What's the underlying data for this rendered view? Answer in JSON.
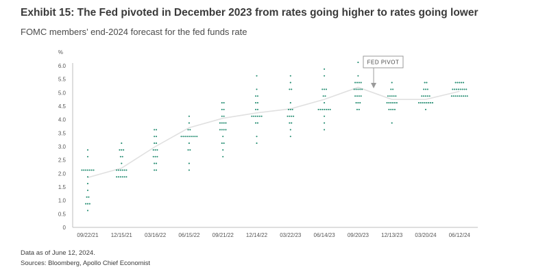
{
  "header": {
    "title": "Exhibit 15: The Fed pivoted in December 2023 from rates going higher to rates going lower",
    "subtitle": "FOMC members’ end-2024 forecast for the fed funds rate"
  },
  "footer": {
    "note": "Data as of June 12, 2024.",
    "sources": "Sources: Bloomberg, Apollo Chief Economist"
  },
  "chart_data": {
    "type": "scatter",
    "title": "",
    "xlabel": "",
    "ylabel": "%",
    "ylim": [
      0,
      6.0
    ],
    "yticks": [
      "0",
      "0.5",
      "1.0",
      "1.5",
      "2.0",
      "2.5",
      "3.0",
      "3.5",
      "4.0",
      "4.5",
      "5.0",
      "5.5",
      "6.0"
    ],
    "categories": [
      "09/22/21",
      "12/15/21",
      "03/16/22",
      "06/15/22",
      "09/21/22",
      "12/14/22",
      "03/22/23",
      "06/14/23",
      "09/20/23",
      "12/13/23",
      "03/20/24",
      "06/12/24"
    ],
    "grid": false,
    "dot_color": "#1f8a6e",
    "line_color": "#e0e0e0",
    "dots": [
      {
        "date": "09/22/21",
        "levels": [
          [
            2.875,
            1
          ],
          [
            2.625,
            1
          ],
          [
            2.125,
            7
          ],
          [
            1.875,
            1
          ],
          [
            1.625,
            1
          ],
          [
            1.375,
            1
          ],
          [
            1.125,
            2
          ],
          [
            0.875,
            3
          ],
          [
            0.625,
            1
          ]
        ]
      },
      {
        "date": "12/15/21",
        "levels": [
          [
            3.125,
            1
          ],
          [
            2.875,
            3
          ],
          [
            2.625,
            2
          ],
          [
            2.375,
            1
          ],
          [
            2.125,
            6
          ],
          [
            1.875,
            6
          ]
        ]
      },
      {
        "date": "03/16/22",
        "levels": [
          [
            3.625,
            2
          ],
          [
            3.375,
            2
          ],
          [
            3.125,
            2
          ],
          [
            2.875,
            3
          ],
          [
            2.625,
            3
          ],
          [
            2.375,
            2
          ],
          [
            2.125,
            2
          ]
        ]
      },
      {
        "date": "06/15/22",
        "levels": [
          [
            4.125,
            1
          ],
          [
            3.875,
            1
          ],
          [
            3.625,
            2
          ],
          [
            3.375,
            9
          ],
          [
            3.125,
            1
          ],
          [
            2.875,
            2
          ],
          [
            2.375,
            1
          ],
          [
            2.125,
            1
          ]
        ]
      },
      {
        "date": "09/21/22",
        "levels": [
          [
            4.625,
            2
          ],
          [
            4.375,
            2
          ],
          [
            4.125,
            2
          ],
          [
            3.875,
            4
          ],
          [
            3.625,
            4
          ],
          [
            3.375,
            1
          ],
          [
            3.125,
            2
          ],
          [
            2.875,
            1
          ],
          [
            2.625,
            1
          ]
        ]
      },
      {
        "date": "12/14/22",
        "levels": [
          [
            5.625,
            1
          ],
          [
            5.125,
            1
          ],
          [
            4.875,
            2
          ],
          [
            4.625,
            2
          ],
          [
            4.375,
            2
          ],
          [
            4.125,
            6
          ],
          [
            3.875,
            2
          ],
          [
            3.375,
            1
          ],
          [
            3.125,
            1
          ]
        ]
      },
      {
        "date": "03/22/23",
        "levels": [
          [
            5.625,
            1
          ],
          [
            5.375,
            1
          ],
          [
            5.125,
            2
          ],
          [
            4.625,
            1
          ],
          [
            4.375,
            3
          ],
          [
            4.125,
            4
          ],
          [
            3.875,
            2
          ],
          [
            3.625,
            1
          ],
          [
            3.375,
            1
          ]
        ]
      },
      {
        "date": "06/14/23",
        "levels": [
          [
            5.875,
            1
          ],
          [
            5.625,
            1
          ],
          [
            5.125,
            3
          ],
          [
            4.875,
            2
          ],
          [
            4.625,
            1
          ],
          [
            4.375,
            7
          ],
          [
            4.125,
            1
          ],
          [
            3.875,
            1
          ],
          [
            3.625,
            1
          ]
        ]
      },
      {
        "date": "09/20/23",
        "levels": [
          [
            6.125,
            1
          ],
          [
            5.625,
            1
          ],
          [
            5.375,
            4
          ],
          [
            5.125,
            5
          ],
          [
            4.875,
            4
          ],
          [
            4.625,
            3
          ],
          [
            4.375,
            2
          ]
        ]
      },
      {
        "date": "12/13/23",
        "levels": [
          [
            5.375,
            1
          ],
          [
            5.125,
            2
          ],
          [
            4.875,
            5
          ],
          [
            4.625,
            6
          ],
          [
            4.375,
            4
          ],
          [
            3.875,
            1
          ]
        ]
      },
      {
        "date": "03/20/24",
        "levels": [
          [
            5.375,
            2
          ],
          [
            5.125,
            3
          ],
          [
            4.875,
            5
          ],
          [
            4.625,
            8
          ],
          [
            4.375,
            1
          ]
        ]
      },
      {
        "date": "06/12/24",
        "levels": [
          [
            5.375,
            5
          ],
          [
            5.125,
            8
          ],
          [
            4.875,
            9
          ]
        ]
      }
    ],
    "median_line": [
      1.85,
      2.2,
      3.0,
      3.7,
      4.05,
      4.25,
      4.4,
      4.75,
      5.2,
      4.75,
      4.75,
      5.05
    ],
    "annotation": {
      "label": "FED PIVOT",
      "points_to": "12/13/23"
    }
  }
}
